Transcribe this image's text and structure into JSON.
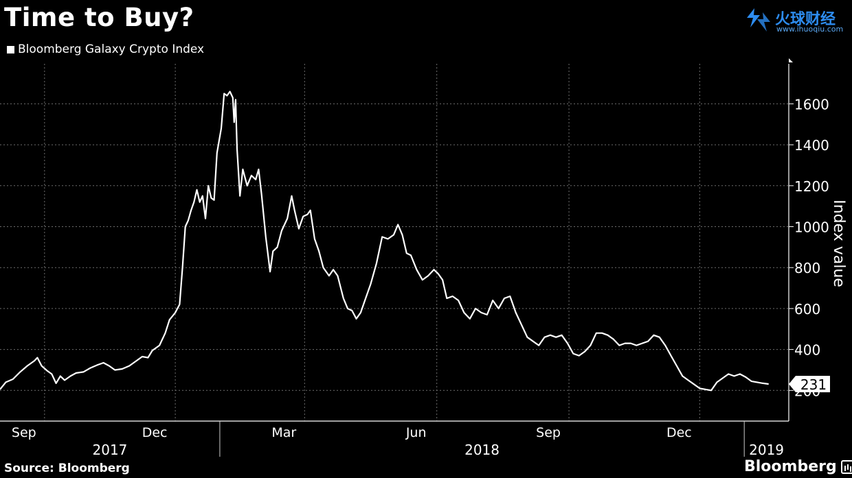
{
  "header": {
    "title": "Time to Buy?",
    "legend_label": "Bloomberg Galaxy Crypto Index"
  },
  "watermark": {
    "name": "火球财经",
    "url": "www.ihuoqiu.com",
    "color": "#2d8cf0"
  },
  "footer": {
    "source": "Source: Bloomberg",
    "brand": "Bloomberg"
  },
  "chart_data": {
    "type": "line",
    "ylabel": "Index value",
    "ylim": [
      0,
      1800
    ],
    "yticks": [
      200,
      400,
      600,
      800,
      1000,
      1200,
      1400,
      1600
    ],
    "month_ticks": [
      {
        "label": "Sep",
        "date": "2017-09-01"
      },
      {
        "label": "Dec",
        "date": "2017-12-01"
      },
      {
        "label": "Mar",
        "date": "2018-03-01"
      },
      {
        "label": "Jun",
        "date": "2018-06-01"
      },
      {
        "label": "Sep",
        "date": "2018-09-01"
      },
      {
        "label": "Dec",
        "date": "2018-12-01"
      }
    ],
    "year_labels": [
      "2017",
      "2018",
      "2019"
    ],
    "grid": true,
    "line_color": "#ffffff",
    "last_value_label": "231",
    "series": [
      {
        "name": "Bloomberg Galaxy Crypto Index",
        "points": [
          [
            "2017-08-01",
            205
          ],
          [
            "2017-08-05",
            240
          ],
          [
            "2017-08-10",
            255
          ],
          [
            "2017-08-15",
            290
          ],
          [
            "2017-08-20",
            320
          ],
          [
            "2017-08-25",
            345
          ],
          [
            "2017-08-27",
            360
          ],
          [
            "2017-08-30",
            320
          ],
          [
            "2017-09-03",
            295
          ],
          [
            "2017-09-06",
            280
          ],
          [
            "2017-09-09",
            235
          ],
          [
            "2017-09-12",
            270
          ],
          [
            "2017-09-15",
            250
          ],
          [
            "2017-09-19",
            270
          ],
          [
            "2017-09-23",
            285
          ],
          [
            "2017-09-28",
            290
          ],
          [
            "2017-10-03",
            310
          ],
          [
            "2017-10-08",
            325
          ],
          [
            "2017-10-12",
            335
          ],
          [
            "2017-10-16",
            320
          ],
          [
            "2017-10-20",
            300
          ],
          [
            "2017-10-25",
            305
          ],
          [
            "2017-10-30",
            320
          ],
          [
            "2017-11-04",
            345
          ],
          [
            "2017-11-08",
            365
          ],
          [
            "2017-11-12",
            360
          ],
          [
            "2017-11-15",
            395
          ],
          [
            "2017-11-20",
            420
          ],
          [
            "2017-11-24",
            480
          ],
          [
            "2017-11-27",
            545
          ],
          [
            "2017-12-01",
            580
          ],
          [
            "2017-12-04",
            620
          ],
          [
            "2017-12-06",
            800
          ],
          [
            "2017-12-08",
            1000
          ],
          [
            "2017-12-10",
            1030
          ],
          [
            "2017-12-12",
            1080
          ],
          [
            "2017-12-14",
            1120
          ],
          [
            "2017-12-16",
            1180
          ],
          [
            "2017-12-18",
            1120
          ],
          [
            "2017-12-20",
            1150
          ],
          [
            "2017-12-22",
            1040
          ],
          [
            "2017-12-24",
            1200
          ],
          [
            "2017-12-26",
            1140
          ],
          [
            "2017-12-28",
            1130
          ],
          [
            "2017-12-30",
            1360
          ],
          [
            "2018-01-02",
            1480
          ],
          [
            "2018-01-04",
            1650
          ],
          [
            "2018-01-06",
            1640
          ],
          [
            "2018-01-08",
            1660
          ],
          [
            "2018-01-10",
            1630
          ],
          [
            "2018-01-11",
            1510
          ],
          [
            "2018-01-12",
            1620
          ],
          [
            "2018-01-13",
            1380
          ],
          [
            "2018-01-15",
            1150
          ],
          [
            "2018-01-17",
            1280
          ],
          [
            "2018-01-20",
            1200
          ],
          [
            "2018-01-23",
            1250
          ],
          [
            "2018-01-26",
            1230
          ],
          [
            "2018-01-28",
            1280
          ],
          [
            "2018-01-30",
            1160
          ],
          [
            "2018-02-02",
            950
          ],
          [
            "2018-02-05",
            780
          ],
          [
            "2018-02-07",
            880
          ],
          [
            "2018-02-10",
            900
          ],
          [
            "2018-02-13",
            980
          ],
          [
            "2018-02-17",
            1040
          ],
          [
            "2018-02-20",
            1150
          ],
          [
            "2018-02-22",
            1080
          ],
          [
            "2018-02-25",
            990
          ],
          [
            "2018-02-28",
            1050
          ],
          [
            "2018-03-03",
            1060
          ],
          [
            "2018-03-05",
            1080
          ],
          [
            "2018-03-08",
            940
          ],
          [
            "2018-03-11",
            880
          ],
          [
            "2018-03-14",
            800
          ],
          [
            "2018-03-18",
            760
          ],
          [
            "2018-03-21",
            790
          ],
          [
            "2018-03-24",
            760
          ],
          [
            "2018-03-28",
            650
          ],
          [
            "2018-03-31",
            600
          ],
          [
            "2018-04-03",
            590
          ],
          [
            "2018-04-06",
            550
          ],
          [
            "2018-04-09",
            580
          ],
          [
            "2018-04-12",
            640
          ],
          [
            "2018-04-16",
            720
          ],
          [
            "2018-04-20",
            820
          ],
          [
            "2018-04-24",
            950
          ],
          [
            "2018-04-28",
            940
          ],
          [
            "2018-05-02",
            960
          ],
          [
            "2018-05-05",
            1010
          ],
          [
            "2018-05-08",
            960
          ],
          [
            "2018-05-11",
            870
          ],
          [
            "2018-05-14",
            860
          ],
          [
            "2018-05-18",
            790
          ],
          [
            "2018-05-22",
            740
          ],
          [
            "2018-05-26",
            760
          ],
          [
            "2018-05-30",
            790
          ],
          [
            "2018-06-02",
            770
          ],
          [
            "2018-06-05",
            740
          ],
          [
            "2018-06-08",
            650
          ],
          [
            "2018-06-12",
            660
          ],
          [
            "2018-06-16",
            640
          ],
          [
            "2018-06-20",
            580
          ],
          [
            "2018-06-24",
            550
          ],
          [
            "2018-06-28",
            600
          ],
          [
            "2018-07-02",
            580
          ],
          [
            "2018-07-06",
            570
          ],
          [
            "2018-07-10",
            640
          ],
          [
            "2018-07-14",
            600
          ],
          [
            "2018-07-18",
            650
          ],
          [
            "2018-07-22",
            660
          ],
          [
            "2018-07-26",
            580
          ],
          [
            "2018-07-30",
            520
          ],
          [
            "2018-08-03",
            460
          ],
          [
            "2018-08-07",
            440
          ],
          [
            "2018-08-11",
            420
          ],
          [
            "2018-08-15",
            460
          ],
          [
            "2018-08-19",
            470
          ],
          [
            "2018-08-23",
            460
          ],
          [
            "2018-08-27",
            470
          ],
          [
            "2018-08-31",
            430
          ],
          [
            "2018-09-04",
            380
          ],
          [
            "2018-09-08",
            370
          ],
          [
            "2018-09-12",
            390
          ],
          [
            "2018-09-16",
            420
          ],
          [
            "2018-09-20",
            480
          ],
          [
            "2018-09-24",
            480
          ],
          [
            "2018-09-28",
            470
          ],
          [
            "2018-10-02",
            450
          ],
          [
            "2018-10-06",
            420
          ],
          [
            "2018-10-10",
            430
          ],
          [
            "2018-10-14",
            430
          ],
          [
            "2018-10-18",
            420
          ],
          [
            "2018-10-22",
            430
          ],
          [
            "2018-10-26",
            440
          ],
          [
            "2018-10-30",
            470
          ],
          [
            "2018-11-03",
            460
          ],
          [
            "2018-11-07",
            420
          ],
          [
            "2018-11-11",
            370
          ],
          [
            "2018-11-15",
            320
          ],
          [
            "2018-11-19",
            270
          ],
          [
            "2018-11-23",
            250
          ],
          [
            "2018-11-27",
            230
          ],
          [
            "2018-12-01",
            210
          ],
          [
            "2018-12-05",
            205
          ],
          [
            "2018-12-09",
            200
          ],
          [
            "2018-12-13",
            240
          ],
          [
            "2018-12-17",
            260
          ],
          [
            "2018-12-21",
            280
          ],
          [
            "2018-12-25",
            270
          ],
          [
            "2018-12-29",
            280
          ],
          [
            "2019-01-02",
            265
          ],
          [
            "2019-01-06",
            245
          ],
          [
            "2019-01-10",
            240
          ],
          [
            "2019-01-14",
            235
          ],
          [
            "2019-01-18",
            231
          ]
        ]
      }
    ]
  }
}
